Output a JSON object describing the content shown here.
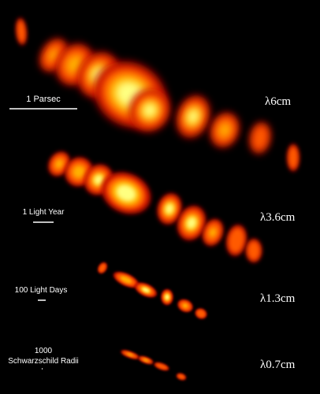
{
  "panels": [
    {
      "scale_label": [
        "1 Parsec"
      ],
      "wavelength": "λ6cm"
    },
    {
      "scale_label": [
        "1 Light Year"
      ],
      "wavelength": "λ3.6cm"
    },
    {
      "scale_label": [
        "100 Light Days"
      ],
      "wavelength": "λ1.3cm"
    },
    {
      "scale_label": [
        "1000",
        "Schwarzschild Radii"
      ],
      "wavelength": "λ0.7cm"
    }
  ]
}
